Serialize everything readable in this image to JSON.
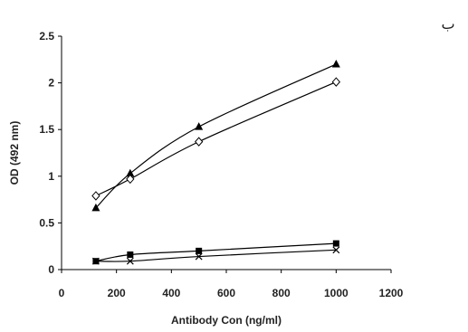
{
  "panel_label": "ب",
  "chart_data": {
    "type": "line",
    "xlabel": "Antibody Con (ng/ml)",
    "ylabel": "OD (492 nm)",
    "xlim": [
      0,
      1200
    ],
    "ylim": [
      0,
      2.5
    ],
    "xticks": [
      "0",
      "200",
      "400",
      "600",
      "800",
      "1000",
      "1200"
    ],
    "yticks": [
      "0",
      "0.5",
      "1",
      "1.5",
      "2",
      "2.5"
    ],
    "grid": false,
    "legend": "none",
    "x": [
      125,
      250,
      500,
      1000
    ],
    "series": [
      {
        "marker": "triangle",
        "color": "#000000",
        "values": [
          0.66,
          1.03,
          1.53,
          2.2
        ]
      },
      {
        "marker": "diamond-open",
        "color": "#000000",
        "values": [
          0.79,
          0.97,
          1.37,
          2.01
        ]
      },
      {
        "marker": "square",
        "color": "#000000",
        "values": [
          0.09,
          0.16,
          0.2,
          0.28
        ]
      },
      {
        "marker": "x",
        "color": "#000000",
        "values": [
          0.09,
          0.09,
          0.14,
          0.21
        ]
      }
    ]
  }
}
